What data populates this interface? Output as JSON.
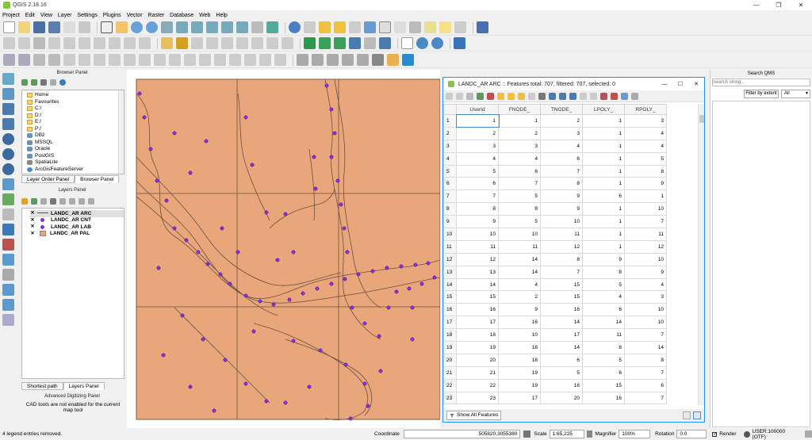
{
  "window": {
    "title": "QGIS 2.18.16",
    "controls": [
      "—",
      "❐",
      "✕"
    ]
  },
  "menu": [
    "Project",
    "Edit",
    "View",
    "Layer",
    "Settings",
    "Plugins",
    "Vector",
    "Raster",
    "Database",
    "Web",
    "Help"
  ],
  "browser_panel": {
    "title": "Browser Panel",
    "items": [
      "Home",
      "Favourites",
      "C:/",
      "D:/",
      "E:/",
      "P:/",
      "DB2",
      "MSSQL",
      "Oracle",
      "PostGIS",
      "SpatiaLite",
      "ArcGisFeatureServer"
    ],
    "tabs": [
      "Layer Order Panel",
      "Browser Panel"
    ]
  },
  "layers_panel": {
    "title": "Layers Panel",
    "layers": [
      "LANDC_AR ARC",
      "LANDC_AR CNT",
      "LANDC_AR LAB",
      "LANDC_AR PAL"
    ]
  },
  "bottom_tabs": [
    "Shortest path",
    "Layers Panel"
  ],
  "digitizing": {
    "title": "Advanced Digitizing Panel",
    "message": "CAD tools are not enabled for the current map tool"
  },
  "attribute_table": {
    "title": "LANDC_AR ARC :: Features total: 707, filtered: 707, selected: 0",
    "columns": [
      "UserId",
      "FNODE_",
      "TNODE_",
      "LPOLY_",
      "RPOLY_"
    ],
    "rows": [
      [
        "1",
        "1",
        "1",
        "2",
        "1",
        "3"
      ],
      [
        "2",
        "2",
        "2",
        "3",
        "1",
        "4"
      ],
      [
        "3",
        "3",
        "3",
        "4",
        "1",
        "4"
      ],
      [
        "4",
        "4",
        "4",
        "6",
        "1",
        "5"
      ],
      [
        "5",
        "5",
        "6",
        "7",
        "1",
        "8"
      ],
      [
        "6",
        "6",
        "7",
        "8",
        "1",
        "9"
      ],
      [
        "7",
        "7",
        "5",
        "9",
        "6",
        "1"
      ],
      [
        "8",
        "8",
        "8",
        "9",
        "1",
        "10"
      ],
      [
        "9",
        "9",
        "5",
        "10",
        "1",
        "7"
      ],
      [
        "10",
        "10",
        "10",
        "11",
        "1",
        "11"
      ],
      [
        "11",
        "11",
        "11",
        "12",
        "1",
        "12"
      ],
      [
        "12",
        "12",
        "14",
        "8",
        "9",
        "10"
      ],
      [
        "13",
        "13",
        "14",
        "7",
        "8",
        "9"
      ],
      [
        "14",
        "14",
        "4",
        "15",
        "5",
        "4"
      ],
      [
        "15",
        "15",
        "2",
        "15",
        "4",
        "3"
      ],
      [
        "16",
        "16",
        "9",
        "16",
        "6",
        "10"
      ],
      [
        "17",
        "17",
        "16",
        "14",
        "14",
        "10"
      ],
      [
        "18",
        "18",
        "10",
        "17",
        "11",
        "7"
      ],
      [
        "19",
        "19",
        "18",
        "14",
        "8",
        "14"
      ],
      [
        "20",
        "20",
        "18",
        "6",
        "5",
        "8"
      ],
      [
        "21",
        "21",
        "19",
        "5",
        "6",
        "7"
      ],
      [
        "22",
        "22",
        "19",
        "16",
        "15",
        "6"
      ],
      [
        "23",
        "23",
        "17",
        "20",
        "16",
        "7"
      ]
    ],
    "footer_button": "Show All Features"
  },
  "qms_panel": {
    "title": "Search QMS",
    "search_placeholder": "Search string...",
    "filter_button": "Filter by extent",
    "filter_select": "All"
  },
  "status": {
    "message": "4 legend entries removed.",
    "coordinate_label": "Coordinate",
    "coordinate": "505820,3055380",
    "scale_label": "Scale",
    "scale": "1:65,225",
    "magnifier_label": "Magnifier",
    "magnifier": "100%",
    "rotation_label": "Rotation",
    "rotation": "0.0",
    "render_label": "Render",
    "crs": "USER:100000 (OTF)"
  },
  "colors": {
    "map_fill": "#e8a67a",
    "point": "#8a2be2",
    "accent": "#1e90ff"
  }
}
